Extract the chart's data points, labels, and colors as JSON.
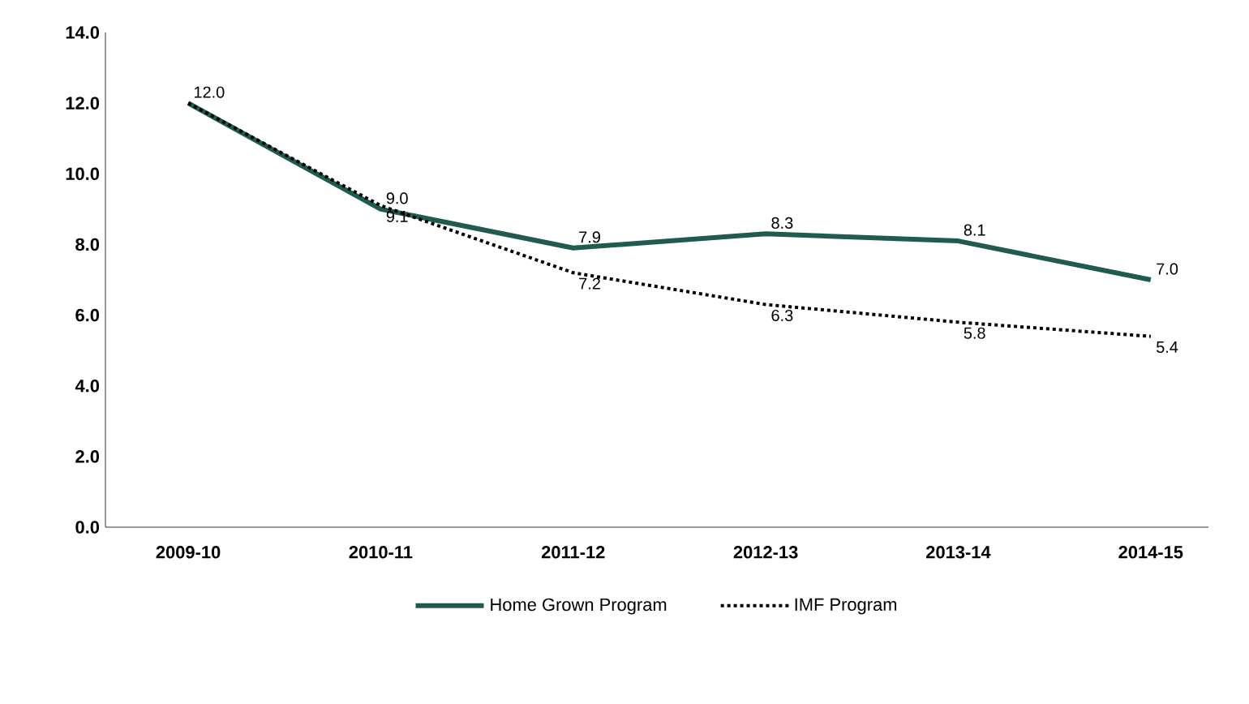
{
  "chart_data": {
    "type": "line",
    "categories": [
      "2009-10",
      "2010-11",
      "2011-12",
      "2012-13",
      "2013-14",
      "2014-15"
    ],
    "series": [
      {
        "name": "Home Grown Program",
        "color": "#1f5c4f",
        "line_style": "solid",
        "values": [
          12.0,
          9.0,
          7.9,
          8.3,
          8.1,
          7.0
        ],
        "value_labels": [
          "12.0",
          "9.0",
          "7.9",
          "8.3",
          "8.1",
          "7.0"
        ]
      },
      {
        "name": "IMF Program",
        "color": "#000000",
        "line_style": "dotted",
        "values": [
          12.0,
          9.1,
          7.2,
          6.3,
          5.8,
          5.4
        ],
        "value_labels": [
          null,
          "9.1",
          "7.2",
          "6.3",
          "5.8",
          "5.4"
        ]
      }
    ],
    "ylim": [
      0,
      14
    ],
    "yticks": [
      {
        "value": 0,
        "label": "0.0"
      },
      {
        "value": 2,
        "label": "2.0"
      },
      {
        "value": 4,
        "label": "4.0"
      },
      {
        "value": 6,
        "label": "6.0"
      },
      {
        "value": 8,
        "label": "8.0"
      },
      {
        "value": 10,
        "label": "10.0"
      },
      {
        "value": 12,
        "label": "12.0"
      },
      {
        "value": 14,
        "label": "14.0"
      }
    ],
    "grid": false,
    "legend": "bottom",
    "marker": "none"
  }
}
